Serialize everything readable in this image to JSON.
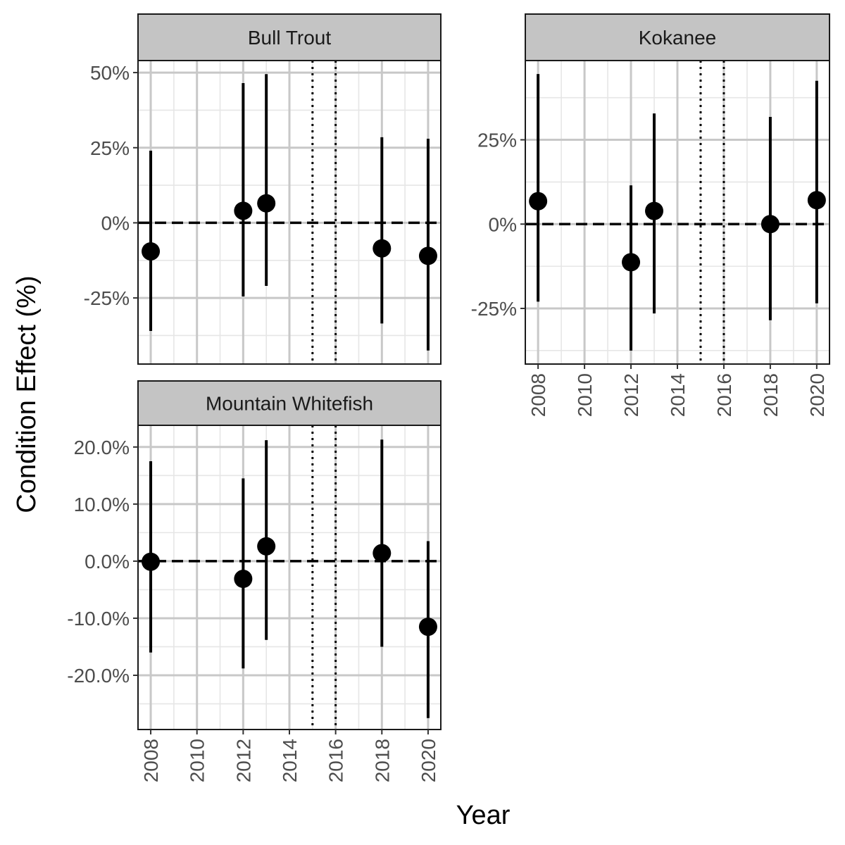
{
  "figure": {
    "xlabel": "Year",
    "ylabel": "Condition Effect (%)"
  },
  "colors": {
    "strip_fill": "#c4c4c4",
    "grid_major": "#c8c8c8",
    "grid_minor": "#e6e6e6",
    "border": "#1a1a1a",
    "point": "#000000",
    "tick_text": "#4d4d4d",
    "axis_title": "#000000"
  },
  "chart_data": [
    {
      "type": "scatter",
      "panel": "Bull Trout",
      "x_ticks": [
        2008,
        2010,
        2012,
        2014,
        2016,
        2018,
        2020
      ],
      "x_tick_labels": [
        "2008",
        "2010",
        "2012",
        "2014",
        "2016",
        "2018",
        "2020"
      ],
      "xlim": [
        2007.45,
        2020.55
      ],
      "y_ticks": [
        -25,
        0,
        25,
        50
      ],
      "y_tick_labels": [
        "-25%",
        "0%",
        "25%",
        "50%"
      ],
      "ylim": [
        -47,
        54
      ],
      "hline": 0,
      "vlines": [
        2015,
        2016
      ],
      "points": [
        {
          "x": 2008,
          "y": -9.5,
          "lo": -36,
          "hi": 24
        },
        {
          "x": 2012,
          "y": 4,
          "lo": -24.5,
          "hi": 46.5
        },
        {
          "x": 2013,
          "y": 6.5,
          "lo": -21,
          "hi": 49.5
        },
        {
          "x": 2018,
          "y": -8.5,
          "lo": -33.5,
          "hi": 28.5
        },
        {
          "x": 2020,
          "y": -11,
          "lo": -42.5,
          "hi": 28
        }
      ]
    },
    {
      "type": "scatter",
      "panel": "Kokanee",
      "x_ticks": [
        2008,
        2010,
        2012,
        2014,
        2016,
        2018,
        2020
      ],
      "x_tick_labels": [
        "2008",
        "2010",
        "2012",
        "2014",
        "2016",
        "2018",
        "2020"
      ],
      "xlim": [
        2007.45,
        2020.55
      ],
      "y_ticks": [
        -25,
        0,
        25
      ],
      "y_tick_labels": [
        "-25%",
        "0%",
        "25%"
      ],
      "ylim": [
        -41.5,
        48.5
      ],
      "hline": 0,
      "vlines": [
        2015,
        2016
      ],
      "points": [
        {
          "x": 2008,
          "y": 6.8,
          "lo": -23,
          "hi": 44.5
        },
        {
          "x": 2012,
          "y": -11.3,
          "lo": -37.5,
          "hi": 11.5
        },
        {
          "x": 2013,
          "y": 3.9,
          "lo": -26.5,
          "hi": 32.8
        },
        {
          "x": 2018,
          "y": 0,
          "lo": -28.5,
          "hi": 31.8
        },
        {
          "x": 2020,
          "y": 7.1,
          "lo": -23.5,
          "hi": 42.5
        }
      ]
    },
    {
      "type": "scatter",
      "panel": "Mountain Whitefish",
      "x_ticks": [
        2008,
        2010,
        2012,
        2014,
        2016,
        2018,
        2020
      ],
      "x_tick_labels": [
        "2008",
        "2010",
        "2012",
        "2014",
        "2016",
        "2018",
        "2020"
      ],
      "xlim": [
        2007.45,
        2020.55
      ],
      "y_ticks": [
        -20,
        -10,
        0,
        10,
        20
      ],
      "y_tick_labels": [
        "-20.0%",
        "-10.0%",
        "0.0%",
        "10.0%",
        "20.0%"
      ],
      "ylim": [
        -29.5,
        23.8
      ],
      "hline": 0,
      "vlines": [
        2015,
        2016
      ],
      "points": [
        {
          "x": 2008,
          "y": -0.1,
          "lo": -16,
          "hi": 17.5
        },
        {
          "x": 2012,
          "y": -3.1,
          "lo": -18.8,
          "hi": 14.5
        },
        {
          "x": 2013,
          "y": 2.6,
          "lo": -13.8,
          "hi": 21.2
        },
        {
          "x": 2018,
          "y": 1.4,
          "lo": -15,
          "hi": 21.3
        },
        {
          "x": 2020,
          "y": -11.5,
          "lo": -27.5,
          "hi": 3.5
        }
      ]
    }
  ]
}
